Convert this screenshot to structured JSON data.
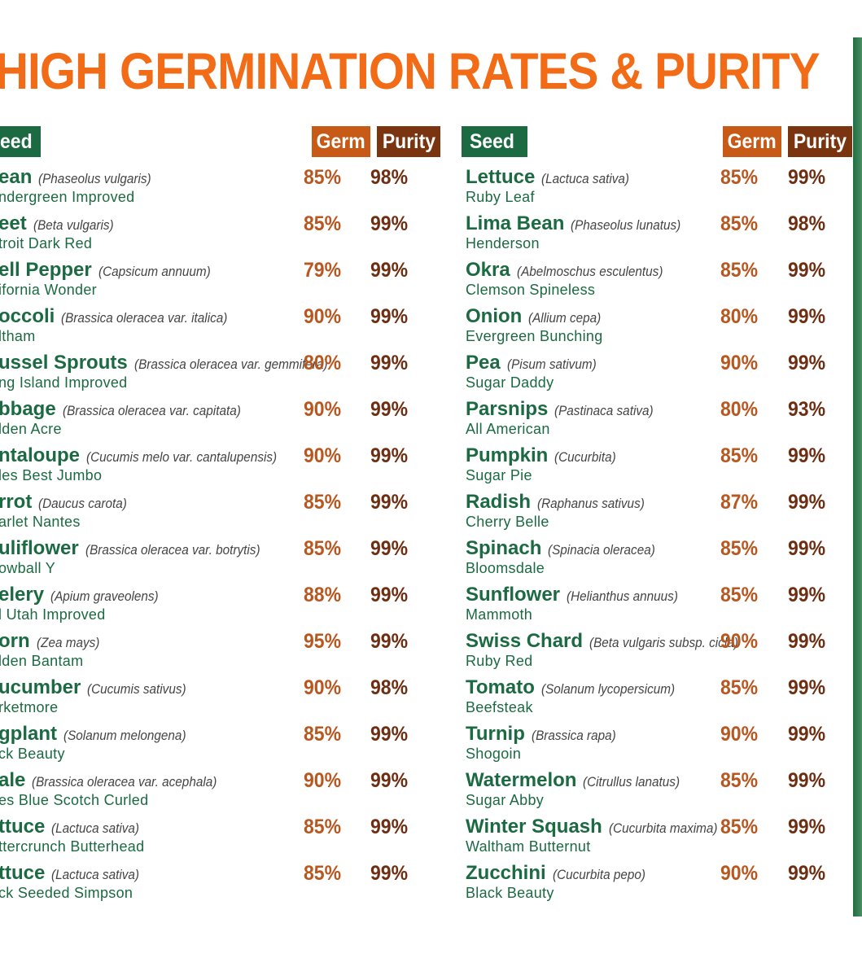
{
  "title": "HIGH GERMINATION RATES & PURITY",
  "colors": {
    "title": "#f26b16",
    "seed_header_bg": "#1b6a42",
    "germ_header_bg": "#c75a17",
    "purity_header_bg": "#7a3510",
    "seed_name": "#1b6a42",
    "variety": "#1b6a42",
    "germ_value": "#b8571f",
    "purity_value": "#6e2e12"
  },
  "headers": {
    "left": {
      "seed": "eed",
      "germ": "Germ",
      "purity": "Purity"
    },
    "right": {
      "seed": "Seed",
      "germ": "Germ",
      "purity": "Purity"
    }
  },
  "left_rows": [
    {
      "name": "ean",
      "scientific": "(Phaseolus vulgaris)",
      "variety": "ndergreen Improved",
      "germ": "85%",
      "purity": "98%"
    },
    {
      "name": "eet",
      "scientific": "(Beta vulgaris)",
      "variety": "troit Dark Red",
      "germ": "85%",
      "purity": "99%"
    },
    {
      "name": "ell Pepper",
      "scientific": "(Capsicum annuum)",
      "variety": "ifornia Wonder",
      "germ": "79%",
      "purity": "99%"
    },
    {
      "name": "occoli",
      "scientific": "(Brassica oleracea var. italica)",
      "variety": "ltham",
      "germ": "90%",
      "purity": "99%"
    },
    {
      "name": "ussel Sprouts",
      "scientific": "(Brassica oleracea var. gemmifera)",
      "variety": "ng Island Improved",
      "germ": "80%",
      "purity": "99%"
    },
    {
      "name": "bbage",
      "scientific": "(Brassica oleracea var. capitata)",
      "variety": "lden Acre",
      "germ": "90%",
      "purity": "99%"
    },
    {
      "name": "ntaloupe",
      "scientific": "(Cucumis melo var. cantalupensis)",
      "variety": "les Best Jumbo",
      "germ": "90%",
      "purity": "99%"
    },
    {
      "name": "rrot",
      "scientific": "(Daucus carota)",
      "variety": "arlet Nantes",
      "germ": "85%",
      "purity": "99%"
    },
    {
      "name": "uliflower",
      "scientific": "(Brassica oleracea var. botrytis)",
      "variety": "owball Y",
      "germ": "85%",
      "purity": "99%"
    },
    {
      "name": "elery",
      "scientific": "(Apium graveolens)",
      "variety": "l Utah Improved",
      "germ": "88%",
      "purity": "99%"
    },
    {
      "name": "orn",
      "scientific": "(Zea mays)",
      "variety": "lden Bantam",
      "germ": "95%",
      "purity": "99%"
    },
    {
      "name": "ucumber",
      "scientific": "(Cucumis sativus)",
      "variety": "rketmore",
      "germ": "90%",
      "purity": "98%"
    },
    {
      "name": "gplant",
      "scientific": "(Solanum melongena)",
      "variety": "ck Beauty",
      "germ": "85%",
      "purity": "99%"
    },
    {
      "name": "ale",
      "scientific": "(Brassica oleracea var. acephala)",
      "variety": "es Blue Scotch Curled",
      "germ": "90%",
      "purity": "99%"
    },
    {
      "name": "ttuce",
      "scientific": "(Lactuca sativa)",
      "variety": "ttercrunch Butterhead",
      "germ": "85%",
      "purity": "99%"
    },
    {
      "name": "ttuce",
      "scientific": "(Lactuca sativa)",
      "variety": "ck Seeded Simpson",
      "germ": "85%",
      "purity": "99%"
    }
  ],
  "right_rows": [
    {
      "name": "Lettuce",
      "scientific": "(Lactuca sativa)",
      "variety": "Ruby Leaf",
      "germ": "85%",
      "purity": "99%"
    },
    {
      "name": "Lima Bean",
      "scientific": "(Phaseolus lunatus)",
      "variety": "Henderson",
      "germ": "85%",
      "purity": "98%"
    },
    {
      "name": "Okra",
      "scientific": "(Abelmoschus esculentus)",
      "variety": "Clemson Spineless",
      "germ": "85%",
      "purity": "99%"
    },
    {
      "name": "Onion",
      "scientific": "(Allium cepa)",
      "variety": "Evergreen Bunching",
      "germ": "80%",
      "purity": "99%"
    },
    {
      "name": "Pea",
      "scientific": "(Pisum sativum)",
      "variety": "Sugar Daddy",
      "germ": "90%",
      "purity": "99%"
    },
    {
      "name": "Parsnips",
      "scientific": "(Pastinaca sativa)",
      "variety": "All American",
      "germ": "80%",
      "purity": "93%"
    },
    {
      "name": "Pumpkin",
      "scientific": "(Cucurbita)",
      "variety": "Sugar Pie",
      "germ": "85%",
      "purity": "99%"
    },
    {
      "name": "Radish",
      "scientific": "(Raphanus sativus)",
      "variety": "Cherry Belle",
      "germ": "87%",
      "purity": "99%"
    },
    {
      "name": "Spinach",
      "scientific": "(Spinacia oleracea)",
      "variety": "Bloomsdale",
      "germ": "85%",
      "purity": "99%"
    },
    {
      "name": "Sunflower",
      "scientific": "(Helianthus annuus)",
      "variety": "Mammoth",
      "germ": "85%",
      "purity": "99%"
    },
    {
      "name": "Swiss Chard",
      "scientific": "(Beta vulgaris subsp. cicla)",
      "variety": "Ruby Red",
      "germ": "90%",
      "purity": "99%"
    },
    {
      "name": "Tomato",
      "scientific": "(Solanum lycopersicum)",
      "variety": "Beefsteak",
      "germ": "85%",
      "purity": "99%"
    },
    {
      "name": "Turnip",
      "scientific": "(Brassica rapa)",
      "variety": "Shogoin",
      "germ": "90%",
      "purity": "99%"
    },
    {
      "name": "Watermelon",
      "scientific": "(Citrullus lanatus)",
      "variety": "Sugar Abby",
      "germ": "85%",
      "purity": "99%"
    },
    {
      "name": "Winter Squash",
      "scientific": "(Cucurbita maxima)",
      "variety": "Waltham Butternut",
      "germ": "85%",
      "purity": "99%"
    },
    {
      "name": "Zucchini",
      "scientific": "(Cucurbita pepo)",
      "variety": "Black Beauty",
      "germ": "90%",
      "purity": "99%"
    }
  ]
}
